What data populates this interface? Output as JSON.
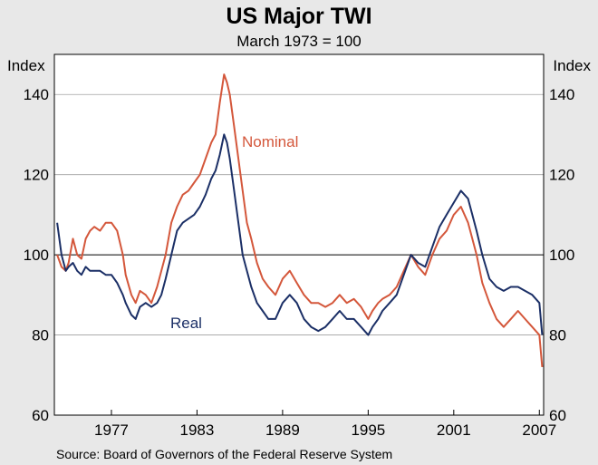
{
  "chart_data": {
    "type": "line",
    "title": "US Major TWI",
    "subtitle": "March 1973 = 100",
    "ylabel_left": "Index",
    "ylabel_right": "Index",
    "ylim": [
      60,
      150
    ],
    "y_ticks": [
      60,
      80,
      100,
      120,
      140
    ],
    "xlim": [
      1973.0,
      2007.3
    ],
    "x_ticks": [
      1977,
      1983,
      1989,
      1995,
      2001,
      2007
    ],
    "reference_line": 100,
    "grid": true,
    "source": "Source: Board of Governors of the Federal Reserve System",
    "colors": {
      "nominal": "#d4573b",
      "real": "#1b2f66",
      "plot_bg": "#ffffff",
      "page_bg": "#e8e8e8",
      "grid": "#a0a0a0"
    },
    "series": [
      {
        "name": "Nominal",
        "label": "Nominal",
        "x": [
          1973.2,
          1973.5,
          1973.8,
          1974.0,
          1974.3,
          1974.6,
          1974.9,
          1975.2,
          1975.5,
          1975.8,
          1976.2,
          1976.6,
          1977.0,
          1977.4,
          1977.8,
          1978.0,
          1978.4,
          1978.7,
          1979.0,
          1979.4,
          1979.8,
          1980.2,
          1980.5,
          1980.8,
          1981.2,
          1981.6,
          1982.0,
          1982.4,
          1982.8,
          1983.2,
          1983.6,
          1984.0,
          1984.3,
          1984.6,
          1984.9,
          1985.1,
          1985.3,
          1985.6,
          1985.9,
          1986.2,
          1986.5,
          1986.8,
          1987.2,
          1987.6,
          1988.0,
          1988.5,
          1989.0,
          1989.5,
          1990.0,
          1990.5,
          1991.0,
          1991.5,
          1992.0,
          1992.5,
          1993.0,
          1993.5,
          1994.0,
          1994.5,
          1995.0,
          1995.3,
          1995.7,
          1996.0,
          1996.5,
          1997.0,
          1997.5,
          1998.0,
          1998.5,
          1999.0,
          1999.5,
          2000.0,
          2000.5,
          2001.0,
          2001.5,
          2002.0,
          2002.3,
          2002.6,
          2003.0,
          2003.5,
          2004.0,
          2004.5,
          2005.0,
          2005.5,
          2006.0,
          2006.5,
          2007.0,
          2007.2
        ],
        "values": [
          100,
          97,
          96,
          98,
          104,
          100,
          99,
          104,
          106,
          107,
          106,
          108,
          108,
          106,
          100,
          95,
          90,
          88,
          91,
          90,
          88,
          92,
          96,
          100,
          108,
          112,
          115,
          116,
          118,
          120,
          124,
          128,
          130,
          138,
          145,
          143,
          140,
          132,
          124,
          116,
          108,
          104,
          98,
          94,
          92,
          90,
          94,
          96,
          93,
          90,
          88,
          88,
          87,
          88,
          90,
          88,
          89,
          87,
          84,
          86,
          88,
          89,
          90,
          92,
          96,
          100,
          97,
          95,
          100,
          104,
          106,
          110,
          112,
          108,
          104,
          100,
          93,
          88,
          84,
          82,
          84,
          86,
          84,
          82,
          80,
          72
        ]
      },
      {
        "name": "Real",
        "label": "Real",
        "x": [
          1973.2,
          1973.5,
          1973.8,
          1974.0,
          1974.3,
          1974.6,
          1974.9,
          1975.2,
          1975.5,
          1975.8,
          1976.2,
          1976.6,
          1977.0,
          1977.4,
          1977.8,
          1978.0,
          1978.4,
          1978.7,
          1979.0,
          1979.4,
          1979.8,
          1980.2,
          1980.5,
          1980.8,
          1981.2,
          1981.6,
          1982.0,
          1982.4,
          1982.8,
          1983.2,
          1983.6,
          1984.0,
          1984.3,
          1984.6,
          1984.9,
          1985.1,
          1985.3,
          1985.6,
          1985.9,
          1986.2,
          1986.5,
          1986.8,
          1987.2,
          1987.6,
          1988.0,
          1988.5,
          1989.0,
          1989.5,
          1990.0,
          1990.5,
          1991.0,
          1991.5,
          1992.0,
          1992.5,
          1993.0,
          1993.5,
          1994.0,
          1994.5,
          1995.0,
          1995.3,
          1995.7,
          1996.0,
          1996.5,
          1997.0,
          1997.5,
          1998.0,
          1998.5,
          1999.0,
          1999.5,
          2000.0,
          2000.5,
          2001.0,
          2001.5,
          2002.0,
          2002.3,
          2002.6,
          2003.0,
          2003.5,
          2004.0,
          2004.5,
          2005.0,
          2005.5,
          2006.0,
          2006.5,
          2007.0,
          2007.2
        ],
        "values": [
          108,
          100,
          96,
          97,
          98,
          96,
          95,
          97,
          96,
          96,
          96,
          95,
          95,
          93,
          90,
          88,
          85,
          84,
          87,
          88,
          87,
          88,
          90,
          94,
          100,
          106,
          108,
          109,
          110,
          112,
          115,
          119,
          121,
          125,
          130,
          128,
          124,
          116,
          108,
          100,
          96,
          92,
          88,
          86,
          84,
          84,
          88,
          90,
          88,
          84,
          82,
          81,
          82,
          84,
          86,
          84,
          84,
          82,
          80,
          82,
          84,
          86,
          88,
          90,
          95,
          100,
          98,
          97,
          102,
          107,
          110,
          113,
          116,
          114,
          110,
          106,
          100,
          94,
          92,
          91,
          92,
          92,
          91,
          90,
          88,
          80
        ]
      }
    ]
  }
}
